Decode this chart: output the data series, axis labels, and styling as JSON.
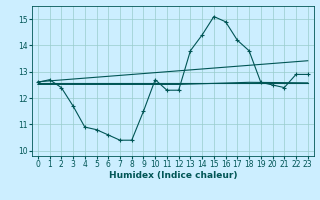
{
  "xlabel": "Humidex (Indice chaleur)",
  "background_color": "#cceeff",
  "grid_color": "#99cccc",
  "line_color": "#005555",
  "xlim": [
    -0.5,
    23.5
  ],
  "ylim": [
    9.8,
    15.5
  ],
  "yticks": [
    10,
    11,
    12,
    13,
    14,
    15
  ],
  "xticks": [
    0,
    1,
    2,
    3,
    4,
    5,
    6,
    7,
    8,
    9,
    10,
    11,
    12,
    13,
    14,
    15,
    16,
    17,
    18,
    19,
    20,
    21,
    22,
    23
  ],
  "line1_x": [
    0,
    1,
    2,
    3,
    4,
    5,
    6,
    7,
    8,
    9,
    10,
    11,
    12,
    13,
    14,
    15,
    16,
    17,
    18,
    19,
    20,
    21,
    22,
    23
  ],
  "line1_y": [
    12.6,
    12.7,
    12.4,
    11.7,
    10.9,
    10.8,
    10.6,
    10.4,
    10.4,
    11.5,
    12.7,
    12.3,
    12.3,
    13.8,
    14.4,
    15.1,
    14.9,
    14.2,
    13.8,
    12.6,
    12.5,
    12.4,
    12.9,
    12.9
  ],
  "line2_x": [
    0,
    23
  ],
  "line2_y": [
    12.58,
    12.58
  ],
  "line3_x": [
    0,
    23
  ],
  "line3_y": [
    12.62,
    13.42
  ],
  "line4_x": [
    0,
    12,
    18,
    23
  ],
  "line4_y": [
    12.52,
    12.52,
    12.6,
    12.58
  ]
}
